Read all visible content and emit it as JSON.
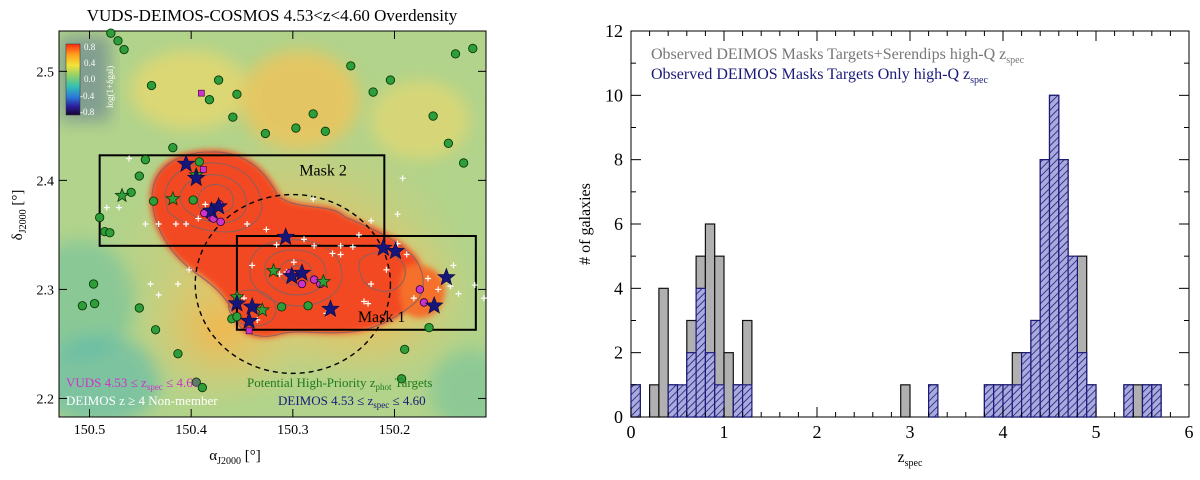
{
  "chart_data": [
    {
      "type": "heatmap",
      "title": "VUDS-DEIMOS-COSMOS 4.53<z<4.60 Overdensity",
      "xlabel_main": "α",
      "xlabel_sub": "J2000",
      "xlabel_unit": " [°]",
      "ylabel_main": "δ",
      "ylabel_sub": "J2000",
      "ylabel_unit": " [°]",
      "xlim": [
        150.53,
        150.11
      ],
      "ylim": [
        2.183,
        2.537
      ],
      "xticks": [
        "150.5",
        "150.4",
        "150.3",
        "150.2"
      ],
      "yticks": [
        "2.2",
        "2.3",
        "2.4",
        "2.5"
      ],
      "colorbar": {
        "label": "log(1+δgal)",
        "ticks": [
          "0.8",
          "0.4",
          "0.0",
          "-0.4",
          "-0.8"
        ]
      },
      "masks": [
        {
          "label": "Mask 2",
          "ra": [
            150.49,
            150.21
          ],
          "dec": [
            2.34,
            2.423
          ]
        },
        {
          "label": "Mask 1",
          "ra": [
            150.355,
            150.12
          ],
          "dec": [
            2.263,
            2.349
          ]
        }
      ],
      "circle": {
        "ra": 150.3,
        "dec": 2.305,
        "r_ra": 0.096,
        "r_dec": 0.082
      },
      "legend": [
        {
          "text": "VUDS 4.53 ≤ z",
          "sub": "spec",
          "tail": " ≤ 4.60",
          "color": "#cc33cc"
        },
        {
          "text": "Potential High-Priority z",
          "sub": "phot",
          "tail": " Targets",
          "color": "#1f7a1f"
        },
        {
          "text": "DEIMOS z ≥ 4 Non-member",
          "sub": "",
          "tail": "",
          "color": "#ffffff"
        },
        {
          "text": "DEIMOS 4.53 ≤ z",
          "sub": "spec",
          "tail": " ≤ 4.60",
          "color": "#1a1a7a"
        }
      ],
      "blue_stars": [
        [
          150.405,
          2.415
        ],
        [
          150.395,
          2.402
        ],
        [
          150.38,
          2.372
        ],
        [
          150.373,
          2.376
        ],
        [
          150.307,
          2.348
        ],
        [
          150.301,
          2.312
        ],
        [
          150.291,
          2.315
        ],
        [
          150.211,
          2.338
        ],
        [
          150.199,
          2.335
        ],
        [
          150.149,
          2.311
        ],
        [
          150.161,
          2.285
        ],
        [
          150.263,
          2.282
        ],
        [
          150.34,
          2.284
        ],
        [
          150.343,
          2.271
        ],
        [
          150.355,
          2.287
        ]
      ],
      "green_stars": [
        [
          150.468,
          2.386
        ],
        [
          150.418,
          2.383
        ],
        [
          150.395,
          2.405
        ],
        [
          150.319,
          2.317
        ],
        [
          150.27,
          2.307
        ],
        [
          150.33,
          2.281
        ],
        [
          150.355,
          2.293
        ]
      ],
      "magenta_circles": [
        [
          150.387,
          2.37
        ],
        [
          150.38,
          2.366
        ],
        [
          150.378,
          2.365
        ],
        [
          150.372,
          2.378
        ],
        [
          150.371,
          2.362
        ],
        [
          150.303,
          2.315
        ],
        [
          150.291,
          2.305
        ],
        [
          150.279,
          2.309
        ],
        [
          150.273,
          2.305
        ],
        [
          150.175,
          2.3
        ],
        [
          150.171,
          2.288
        ]
      ],
      "magenta_squares": [
        [
          150.388,
          2.41
        ],
        [
          150.39,
          2.48
        ],
        [
          150.343,
          2.262
        ]
      ],
      "green_circles": [
        [
          150.472,
          2.528
        ],
        [
          150.466,
          2.52
        ],
        [
          150.479,
          2.535
        ],
        [
          150.439,
          2.487
        ],
        [
          150.373,
          2.492
        ],
        [
          150.355,
          2.479
        ],
        [
          150.382,
          2.474
        ],
        [
          150.359,
          2.458
        ],
        [
          150.327,
          2.443
        ],
        [
          150.297,
          2.448
        ],
        [
          150.28,
          2.461
        ],
        [
          150.204,
          2.492
        ],
        [
          150.14,
          2.516
        ],
        [
          150.123,
          2.521
        ],
        [
          150.162,
          2.459
        ],
        [
          150.147,
          2.434
        ],
        [
          150.132,
          2.416
        ],
        [
          150.221,
          2.481
        ],
        [
          150.243,
          2.505
        ],
        [
          150.268,
          2.445
        ],
        [
          150.445,
          2.419
        ],
        [
          150.459,
          2.389
        ],
        [
          150.49,
          2.366
        ],
        [
          150.485,
          2.353
        ],
        [
          150.48,
          2.352
        ],
        [
          150.496,
          2.305
        ],
        [
          150.495,
          2.287
        ],
        [
          150.507,
          2.285
        ],
        [
          150.451,
          2.283
        ],
        [
          150.435,
          2.263
        ],
        [
          150.413,
          2.241
        ],
        [
          150.395,
          2.215
        ],
        [
          150.389,
          2.21
        ],
        [
          150.36,
          2.273
        ],
        [
          150.355,
          2.275
        ],
        [
          150.311,
          2.284
        ],
        [
          150.451,
          2.404
        ],
        [
          150.418,
          2.43
        ],
        [
          150.193,
          2.218
        ],
        [
          150.166,
          2.265
        ],
        [
          150.19,
          2.245
        ],
        [
          150.285,
          2.285
        ],
        [
          150.392,
          2.417
        ],
        [
          150.437,
          2.381
        ],
        [
          150.398,
          2.382
        ]
      ],
      "white_crosses": [
        [
          150.483,
          2.375
        ],
        [
          150.471,
          2.375
        ],
        [
          150.445,
          2.36
        ],
        [
          150.432,
          2.36
        ],
        [
          150.415,
          2.36
        ],
        [
          150.345,
          2.36
        ],
        [
          150.326,
          2.355
        ],
        [
          150.235,
          2.35
        ],
        [
          150.223,
          2.363
        ],
        [
          150.223,
          2.305
        ],
        [
          150.23,
          2.289
        ],
        [
          150.208,
          2.318
        ],
        [
          150.197,
          2.342
        ],
        [
          150.192,
          2.402
        ],
        [
          150.157,
          2.3
        ],
        [
          150.145,
          2.303
        ],
        [
          150.142,
          2.322
        ],
        [
          150.137,
          2.296
        ],
        [
          150.121,
          2.304
        ],
        [
          150.112,
          2.292
        ],
        [
          150.253,
          2.332
        ],
        [
          150.289,
          2.346
        ],
        [
          150.316,
          2.341
        ],
        [
          150.34,
          2.322
        ],
        [
          150.348,
          2.292
        ],
        [
          150.359,
          2.271
        ],
        [
          150.335,
          2.272
        ],
        [
          150.299,
          2.325
        ],
        [
          150.306,
          2.316
        ],
        [
          150.313,
          2.314
        ],
        [
          150.393,
          2.365
        ],
        [
          150.386,
          2.378
        ],
        [
          150.405,
          2.36
        ],
        [
          150.461,
          2.42
        ],
        [
          150.261,
          2.333
        ],
        [
          150.253,
          2.34
        ],
        [
          150.188,
          2.332
        ],
        [
          150.197,
          2.369
        ],
        [
          150.28,
          2.383
        ],
        [
          150.279,
          2.34
        ],
        [
          150.241,
          2.339
        ],
        [
          150.226,
          2.287
        ],
        [
          150.432,
          2.295
        ],
        [
          150.413,
          2.305
        ],
        [
          150.402,
          2.318
        ],
        [
          150.267,
          2.278
        ],
        [
          150.181,
          2.292
        ],
        [
          150.167,
          2.31
        ],
        [
          150.44,
          2.305
        ]
      ]
    },
    {
      "type": "bar",
      "xlabel_main": "z",
      "xlabel_sub": "spec",
      "ylabel": "# of galaxies",
      "xlim": [
        0,
        6
      ],
      "ylim": [
        0,
        12
      ],
      "xticks": [
        "0",
        "1",
        "2",
        "3",
        "4",
        "5",
        "6"
      ],
      "yticks": [
        "0",
        "2",
        "4",
        "6",
        "8",
        "10",
        "12"
      ],
      "bin_width": 0.1,
      "legend": [
        {
          "text": "Observed DEIMOS Masks Targets+Serendips high-Q z",
          "sub": "spec",
          "color": "#777777"
        },
        {
          "text": "Observed DEIMOS Masks Targets Only high-Q z",
          "sub": "spec",
          "color": "#1a1a7a"
        }
      ],
      "series": [
        {
          "name": "Observed DEIMOS Masks Targets+Serendips high-Q z_spec",
          "color": "#b0b0b0",
          "bins": [
            [
              0.0,
              1
            ],
            [
              0.2,
              1
            ],
            [
              0.3,
              4
            ],
            [
              0.4,
              1
            ],
            [
              0.5,
              0
            ],
            [
              0.6,
              3
            ],
            [
              0.7,
              5
            ],
            [
              0.8,
              6
            ],
            [
              0.9,
              5
            ],
            [
              1.0,
              2
            ],
            [
              1.1,
              1
            ],
            [
              1.2,
              3
            ],
            [
              2.9,
              1
            ],
            [
              3.2,
              1
            ],
            [
              3.8,
              1
            ],
            [
              3.9,
              1
            ],
            [
              4.0,
              1
            ],
            [
              4.1,
              2
            ],
            [
              4.2,
              2
            ],
            [
              4.3,
              3
            ],
            [
              4.4,
              8
            ],
            [
              4.5,
              10
            ],
            [
              4.6,
              8
            ],
            [
              4.7,
              4
            ],
            [
              4.8,
              5
            ],
            [
              4.9,
              1
            ],
            [
              5.3,
              1
            ],
            [
              5.4,
              1
            ],
            [
              5.5,
              1
            ],
            [
              5.6,
              1
            ]
          ]
        },
        {
          "name": "Observed DEIMOS Masks Targets Only high-Q z_spec",
          "color": "#1a1a7a",
          "bins": [
            [
              0.0,
              1
            ],
            [
              0.4,
              1
            ],
            [
              0.5,
              1
            ],
            [
              0.6,
              2
            ],
            [
              0.7,
              4
            ],
            [
              0.8,
              2
            ],
            [
              0.9,
              1
            ],
            [
              1.0,
              0
            ],
            [
              1.1,
              1
            ],
            [
              1.2,
              1
            ],
            [
              3.2,
              1
            ],
            [
              3.8,
              1
            ],
            [
              3.9,
              1
            ],
            [
              4.0,
              1
            ],
            [
              4.1,
              1
            ],
            [
              4.2,
              2
            ],
            [
              4.3,
              3
            ],
            [
              4.4,
              8
            ],
            [
              4.5,
              10
            ],
            [
              4.6,
              8
            ],
            [
              4.7,
              5
            ],
            [
              4.8,
              2
            ],
            [
              4.9,
              1
            ],
            [
              5.3,
              1
            ],
            [
              5.5,
              1
            ],
            [
              5.6,
              1
            ]
          ]
        }
      ]
    }
  ]
}
